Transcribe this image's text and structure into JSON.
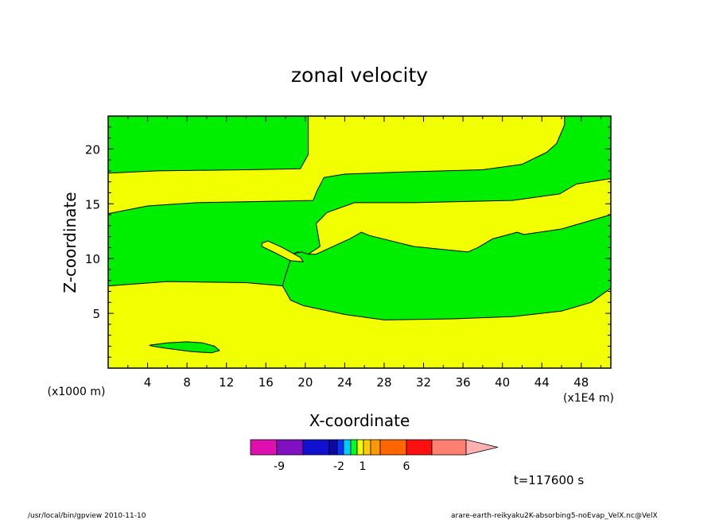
{
  "chart_data": {
    "type": "heatmap",
    "title": "zonal velocity",
    "xlabel": "X-coordinate",
    "ylabel": "Z-coordinate",
    "x_units": "(x1E4 m)",
    "y_units": "(x1000 m)",
    "xlim": [
      0,
      51
    ],
    "ylim": [
      0,
      23
    ],
    "x_ticks": [
      4,
      8,
      12,
      16,
      20,
      24,
      28,
      32,
      36,
      40,
      44,
      48
    ],
    "y_ticks": [
      5,
      10,
      15,
      20
    ],
    "grid": false,
    "colors": {
      "green": "#00ee00",
      "yellow": "#f2ff00"
    },
    "regions": [
      {
        "name": "green-top-left",
        "color": "green",
        "points": [
          [
            0,
            23
          ],
          [
            20.3,
            23
          ],
          [
            20.3,
            19.5
          ],
          [
            19.5,
            18.2
          ],
          [
            14,
            18.1
          ],
          [
            5,
            18
          ],
          [
            0,
            17.8
          ]
        ]
      },
      {
        "name": "green-top-right",
        "color": "green",
        "points": [
          [
            46.3,
            23
          ],
          [
            51,
            23
          ],
          [
            51,
            17.3
          ],
          [
            47.5,
            16.8
          ],
          [
            45.8,
            15.9
          ],
          [
            41,
            15.3
          ],
          [
            31,
            15.1
          ],
          [
            25,
            15.1
          ],
          [
            22.2,
            14.2
          ],
          [
            21.1,
            13.2
          ],
          [
            21.5,
            11.1
          ],
          [
            20.3,
            10.4
          ],
          [
            19.2,
            10.6
          ],
          [
            18.7,
            10.4
          ],
          [
            18,
            8.5
          ],
          [
            17.8,
            7.5
          ],
          [
            14,
            7.8
          ],
          [
            6,
            7.9
          ],
          [
            0,
            7.5
          ],
          [
            0,
            14.1
          ],
          [
            4,
            14.8
          ],
          [
            9,
            15.1
          ],
          [
            15,
            15.2
          ],
          [
            20.8,
            15.3
          ],
          [
            21.2,
            16.2
          ],
          [
            21.9,
            17.4
          ],
          [
            24,
            17.7
          ],
          [
            30,
            17.9
          ],
          [
            38,
            18.1
          ],
          [
            42,
            18.6
          ],
          [
            44.5,
            19.7
          ],
          [
            45.5,
            20.5
          ],
          [
            46.3,
            22.2
          ]
        ]
      },
      {
        "name": "green-middle-lower",
        "color": "green",
        "points": [
          [
            21.1,
            10.4
          ],
          [
            24.5,
            11.8
          ],
          [
            25.7,
            12.4
          ],
          [
            26.5,
            12.1
          ],
          [
            31,
            11.1
          ],
          [
            36.5,
            10.6
          ],
          [
            37.5,
            11
          ],
          [
            39,
            11.8
          ],
          [
            41.5,
            12.4
          ],
          [
            42.2,
            12.2
          ],
          [
            46,
            12.7
          ],
          [
            51,
            14
          ],
          [
            51,
            7.3
          ],
          [
            49,
            6
          ],
          [
            46,
            5.2
          ],
          [
            41,
            4.7
          ],
          [
            35,
            4.5
          ],
          [
            28,
            4.4
          ],
          [
            24,
            4.9
          ],
          [
            19.8,
            5.7
          ],
          [
            18.5,
            6.2
          ],
          [
            17.7,
            7.5
          ],
          [
            18,
            8.5
          ],
          [
            18.7,
            10.4
          ],
          [
            19.6,
            10.6
          ],
          [
            20.3,
            10.4
          ]
        ]
      },
      {
        "name": "yellow-island",
        "color": "yellow",
        "points": [
          [
            15.6,
            11.4
          ],
          [
            16.2,
            11.6
          ],
          [
            17.7,
            11
          ],
          [
            19.5,
            10.1
          ],
          [
            19.8,
            9.7
          ],
          [
            18.5,
            9.8
          ],
          [
            17,
            10.5
          ],
          [
            15.6,
            11.1
          ]
        ]
      },
      {
        "name": "green-bottom-island",
        "color": "green",
        "points": [
          [
            4.2,
            2.1
          ],
          [
            6,
            2.3
          ],
          [
            8,
            2.4
          ],
          [
            9.6,
            2.3
          ],
          [
            10.8,
            2.0
          ],
          [
            11.3,
            1.6
          ],
          [
            10.5,
            1.4
          ],
          [
            8.5,
            1.5
          ],
          [
            6,
            1.8
          ],
          [
            4.5,
            2.0
          ]
        ]
      }
    ],
    "colorbar": {
      "colors": [
        "#e010b0",
        "#8010c0",
        "#1010d0",
        "#0a0aa0",
        "#0a30ff",
        "#00ccff",
        "#00ff20",
        "#f2ff00",
        "#ffcc00",
        "#ff9900",
        "#ff6600",
        "#ff1010",
        "#ff8070",
        "#ffb0b0"
      ],
      "tick_labels": [
        "-9",
        "-2",
        "1",
        "6"
      ]
    },
    "time_label": "t=117600 s"
  },
  "footer": {
    "left": "/usr/local/bin/gpview   2010-11-10",
    "right": "arare-earth-reikyaku2K-absorbing5-noEvap_VelX.nc@VelX"
  }
}
